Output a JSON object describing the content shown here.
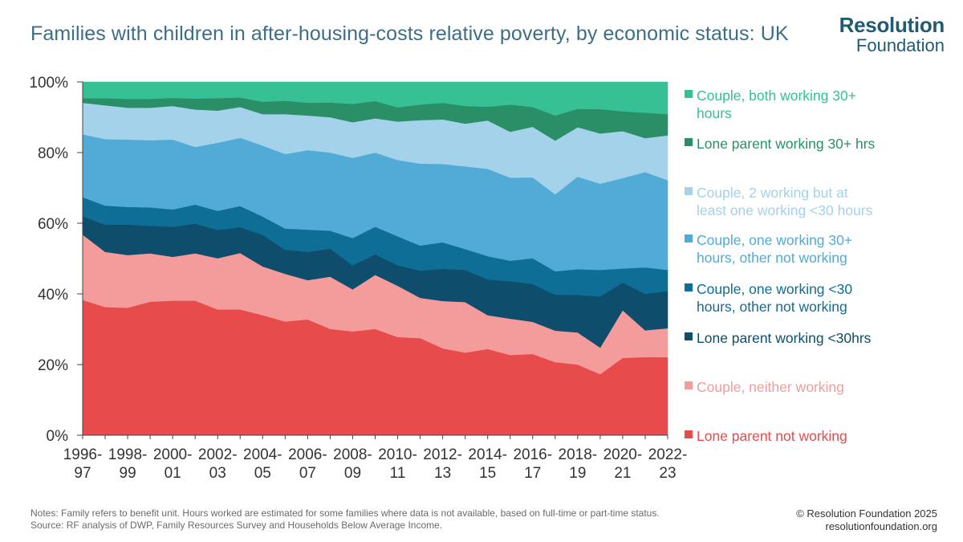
{
  "title": "Families with children in after-housing-costs relative poverty, by economic status: UK",
  "logo": {
    "line1": "Resolution",
    "line2": "Foundation"
  },
  "notes": {
    "line1": "Notes: Family refers to benefit unit. Hours worked are estimated for some families where data is not available, based on full-time or part-time status.",
    "line2": "Source: RF analysis of DWP, Family Resources Survey and Households Below Average Income."
  },
  "credit": {
    "line1": "© Resolution Foundation 2025",
    "line2": "resolutionfoundation.org"
  },
  "chart_data": {
    "type": "area",
    "stacked": true,
    "title": "Families with children in after-housing-costs relative poverty, by economic status: UK",
    "ylabel": "",
    "xlabel": "",
    "ylim": [
      0,
      100
    ],
    "yticks": [
      "0%",
      "20%",
      "40%",
      "60%",
      "80%",
      "100%"
    ],
    "x": [
      "1996-97",
      "1997-98",
      "1998-99",
      "1999-00",
      "2000-01",
      "2001-02",
      "2002-03",
      "2003-04",
      "2004-05",
      "2005-06",
      "2006-07",
      "2007-08",
      "2008-09",
      "2009-10",
      "2010-11",
      "2011-12",
      "2012-13",
      "2013-14",
      "2014-15",
      "2015-16",
      "2016-17",
      "2017-18",
      "2018-19",
      "2019-20",
      "2020-21",
      "2021-22",
      "2022-23"
    ],
    "xtick_labels": [
      [
        "1996-",
        "97"
      ],
      [
        "1998-",
        "99"
      ],
      [
        "2000-",
        "01"
      ],
      [
        "2002-",
        "03"
      ],
      [
        "2004-",
        "05"
      ],
      [
        "2006-",
        "07"
      ],
      [
        "2008-",
        "09"
      ],
      [
        "2010-",
        "11"
      ],
      [
        "2012-",
        "13"
      ],
      [
        "2014-",
        "15"
      ],
      [
        "2016-",
        "17"
      ],
      [
        "2018-",
        "19"
      ],
      [
        "2020-",
        "21"
      ],
      [
        "2022-",
        "23"
      ]
    ],
    "series": [
      {
        "name": "Lone parent not working",
        "color": "#e84b4b",
        "values": [
          38.3,
          36.3,
          36.1,
          37.8,
          38.1,
          38.1,
          35.6,
          35.6,
          34.0,
          32.2,
          32.8,
          30.1,
          29.4,
          30.1,
          27.8,
          27.5,
          24.6,
          23.4,
          24.4,
          22.7,
          23.0,
          20.7,
          20.0,
          17.3,
          21.9,
          22.1,
          22.1
        ]
      },
      {
        "name": "Couple, neither working",
        "color": "#f49b9b",
        "values": [
          18.5,
          15.6,
          14.9,
          13.7,
          12.4,
          13.4,
          14.5,
          16.0,
          13.8,
          13.5,
          11.1,
          14.8,
          11.9,
          15.3,
          14.5,
          11.4,
          13.4,
          14.3,
          9.6,
          10.3,
          9.1,
          8.9,
          9.1,
          7.5,
          13.5,
          7.6,
          8.2
        ]
      },
      {
        "name": "Lone parent working <30hrs",
        "color": "#0f4d6c",
        "values": [
          5.2,
          7.7,
          8.6,
          7.8,
          8.5,
          8.4,
          8.0,
          7.3,
          8.9,
          6.8,
          8.0,
          7.9,
          6.8,
          5.8,
          5.8,
          7.7,
          9.1,
          9.1,
          10.1,
          10.6,
          10.7,
          10.2,
          10.6,
          14.5,
          7.8,
          10.3,
          10.5
        ]
      },
      {
        "name": "Couple, one working <30 hours, other not working",
        "color": "#0f6e96",
        "values": [
          5.4,
          5.4,
          5.0,
          5.2,
          4.9,
          5.4,
          5.4,
          6.0,
          5.2,
          6.0,
          6.3,
          5.1,
          7.7,
          7.8,
          8.2,
          7.1,
          7.5,
          5.9,
          6.6,
          5.8,
          7.3,
          6.6,
          7.3,
          7.5,
          4.0,
          7.5,
          6.0
        ]
      },
      {
        "name": "Couple, one working 30+ hours, other not working",
        "color": "#52aad6",
        "values": [
          17.8,
          18.8,
          19.1,
          19.0,
          19.8,
          16.3,
          19.3,
          19.3,
          20.1,
          21.1,
          22.5,
          22.1,
          22.7,
          21.0,
          21.6,
          23.2,
          22.2,
          23.4,
          24.7,
          23.5,
          22.9,
          21.8,
          26.2,
          24.4,
          25.6,
          27.0,
          25.4
        ]
      },
      {
        "name": "Couple, 2 working but at least one working <30 hours",
        "color": "#a3d2ea",
        "values": [
          8.9,
          9.6,
          9.0,
          9.2,
          9.5,
          10.6,
          9.1,
          8.7,
          8.9,
          11.3,
          9.8,
          10.0,
          10.1,
          9.7,
          10.9,
          12.3,
          12.6,
          12.1,
          13.7,
          13.0,
          14.3,
          15.2,
          14.0,
          14.2,
          13.3,
          9.6,
          12.7
        ]
      },
      {
        "name": "Lone parent working 30+ hrs",
        "color": "#2a8f67",
        "values": [
          1.3,
          2.0,
          2.5,
          2.5,
          2.3,
          3.1,
          3.5,
          2.7,
          3.5,
          3.8,
          3.6,
          4.2,
          5.2,
          4.9,
          4.0,
          4.4,
          4.7,
          5.0,
          3.9,
          7.7,
          5.6,
          7.1,
          5.2,
          6.9,
          5.6,
          7.2,
          6.0
        ]
      },
      {
        "name": "Couple, both working 30+ hours",
        "color": "#36c094",
        "values": [
          4.6,
          4.6,
          4.8,
          4.8,
          4.5,
          4.7,
          4.6,
          4.4,
          5.6,
          5.3,
          5.9,
          5.8,
          6.2,
          5.4,
          7.2,
          6.4,
          5.9,
          6.8,
          7.0,
          6.4,
          7.1,
          9.5,
          7.6,
          7.7,
          8.3,
          8.7,
          9.1
        ]
      }
    ],
    "legend": {
      "placement": "right",
      "order": [
        7,
        6,
        5,
        4,
        3,
        2,
        1,
        0
      ],
      "lines": [
        [
          "Couple, both working 30+",
          "hours"
        ],
        [
          "Lone parent working 30+ hrs"
        ],
        [
          "Couple, 2 working but at",
          "least one working <30 hours"
        ],
        [
          "Couple, one working 30+",
          "hours, other not working"
        ],
        [
          "Couple, one working <30",
          "hours, other not working"
        ],
        [
          "Lone parent working <30hrs"
        ],
        [
          "Couple, neither working"
        ],
        [
          "Lone parent not working"
        ]
      ]
    },
    "grid": false
  }
}
